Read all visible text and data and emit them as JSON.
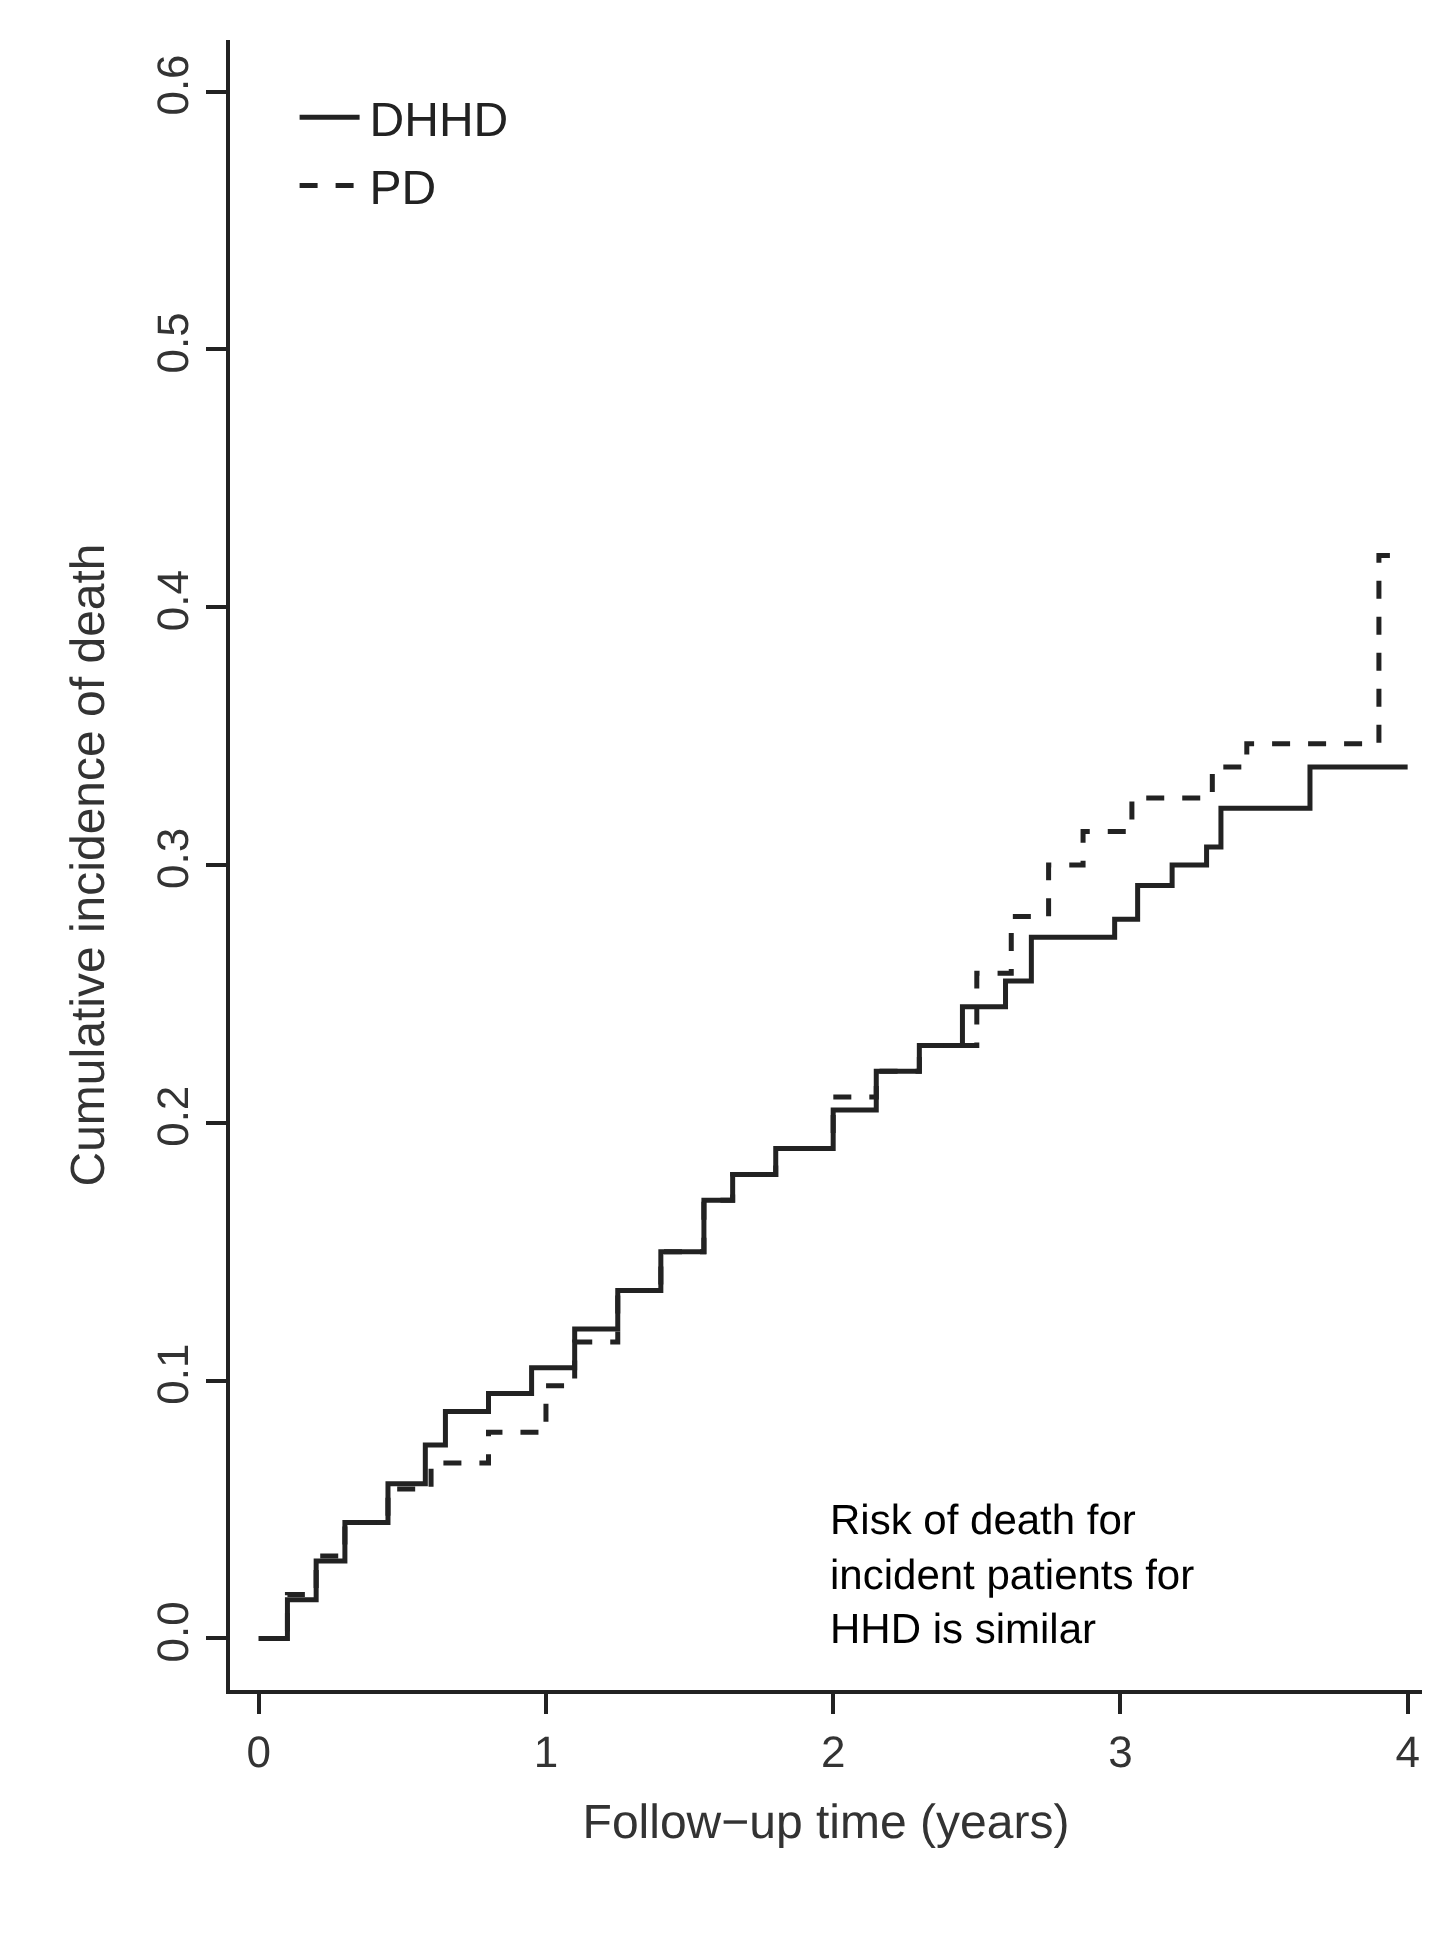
{
  "chart_data": {
    "type": "step",
    "xlabel": "Follow−up time (years)",
    "ylabel": "Cumulative incidence of death",
    "xlim": [
      -0.1,
      4.05
    ],
    "ylim": [
      -0.02,
      0.62
    ],
    "xticks": [
      0,
      1,
      2,
      3,
      4
    ],
    "yticks": [
      {
        "value": 0,
        "label": "0.0"
      },
      {
        "value": 0.1,
        "label": "0.1"
      },
      {
        "value": 0.2,
        "label": "0.2"
      },
      {
        "value": 0.3,
        "label": "0.3"
      },
      {
        "value": 0.4,
        "label": "0.4"
      },
      {
        "value": 0.5,
        "label": "0.5"
      },
      {
        "value": 0.6,
        "label": "0.6"
      }
    ],
    "series": [
      {
        "name": "DHHD",
        "color": "#222222",
        "line_style": "solid",
        "x": [
          0,
          0.1,
          0.2,
          0.3,
          0.45,
          0.58,
          0.65,
          0.8,
          0.95,
          1.1,
          1.25,
          1.4,
          1.55,
          1.65,
          1.8,
          2.0,
          2.15,
          2.3,
          2.45,
          2.6,
          2.69,
          2.98,
          3.06,
          3.18,
          3.3,
          3.35,
          3.66,
          4.0
        ],
        "values": [
          0,
          0.015,
          0.03,
          0.045,
          0.06,
          0.075,
          0.088,
          0.095,
          0.105,
          0.12,
          0.135,
          0.15,
          0.17,
          0.18,
          0.19,
          0.205,
          0.22,
          0.23,
          0.245,
          0.255,
          0.272,
          0.279,
          0.292,
          0.3,
          0.307,
          0.322,
          0.338,
          0.338
        ]
      },
      {
        "name": "PD",
        "color": "#222222",
        "line_style": "dashed",
        "x": [
          0,
          0.1,
          0.2,
          0.3,
          0.45,
          0.6,
          0.8,
          1.0,
          1.1,
          1.25,
          1.4,
          1.55,
          1.65,
          1.8,
          2.0,
          2.15,
          2.3,
          2.5,
          2.62,
          2.75,
          2.87,
          3.04,
          3.32,
          3.44,
          3.9,
          3.95
        ],
        "values": [
          0,
          0.017,
          0.032,
          0.045,
          0.058,
          0.068,
          0.08,
          0.098,
          0.115,
          0.135,
          0.15,
          0.17,
          0.18,
          0.19,
          0.21,
          0.22,
          0.23,
          0.258,
          0.28,
          0.3,
          0.313,
          0.326,
          0.338,
          0.347,
          0.42,
          0.42
        ]
      }
    ],
    "legend": "top left",
    "annotations": [
      "Risk of death for\nincident patients for\nHHD is similar"
    ]
  }
}
